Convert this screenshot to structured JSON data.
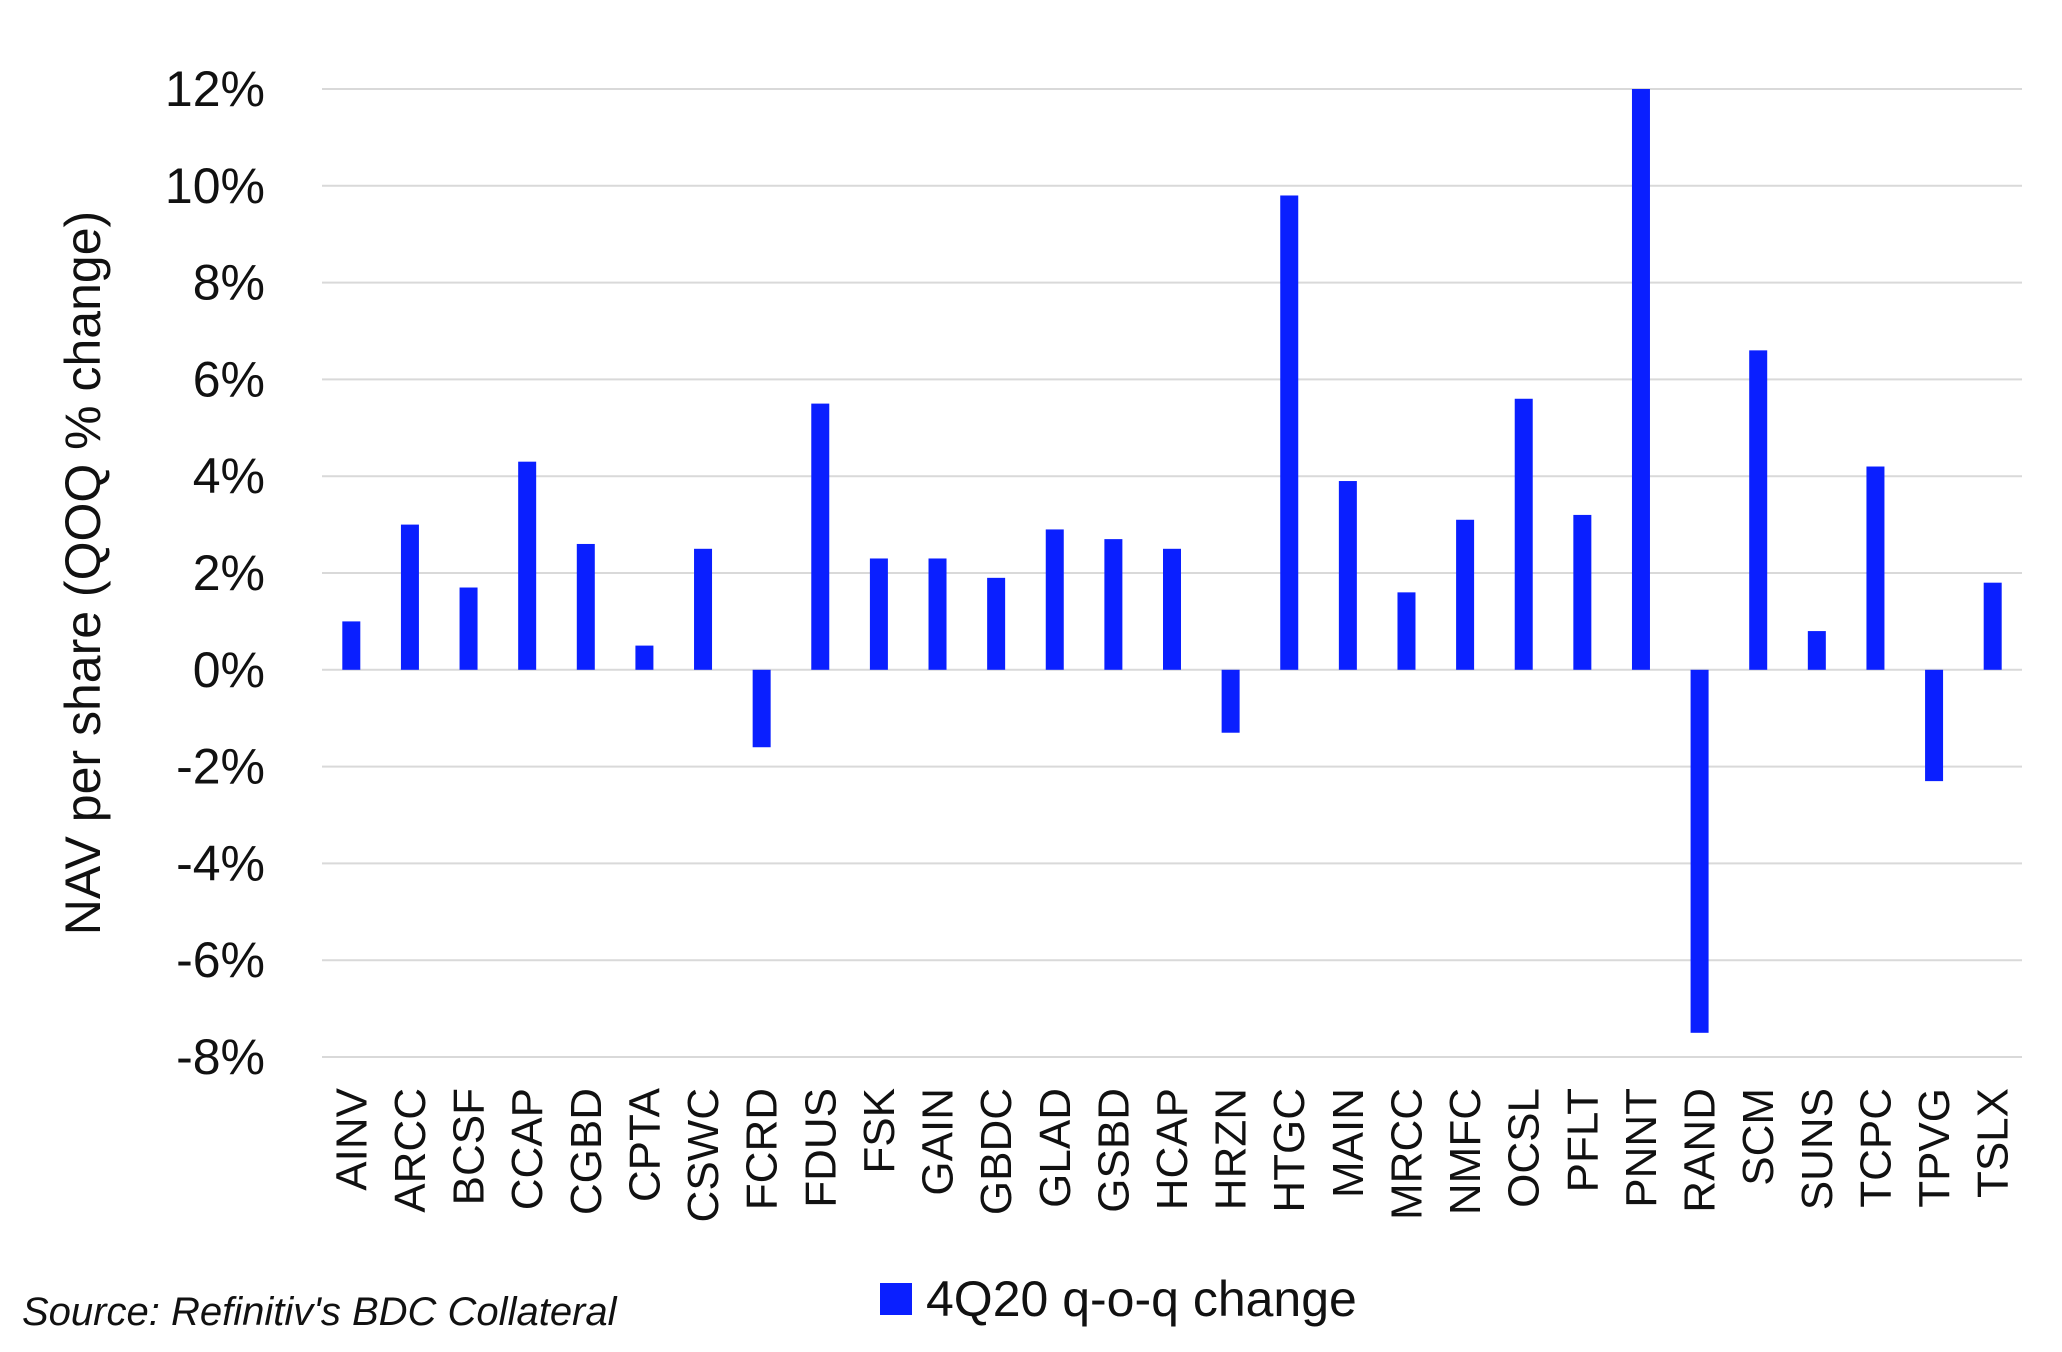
{
  "chart_data": {
    "type": "bar",
    "title": "",
    "xlabel": "",
    "ylabel": "NAV per share (QOQ % change)",
    "ylim": [
      -8,
      12
    ],
    "yticks": [
      -8,
      -6,
      -4,
      -2,
      0,
      2,
      4,
      6,
      8,
      10,
      12
    ],
    "ytick_labels": [
      "-8%",
      "-6%",
      "-4%",
      "-2%",
      "0%",
      "2%",
      "4%",
      "6%",
      "8%",
      "10%",
      "12%"
    ],
    "grid": true,
    "legend_position": "bottom",
    "categories": [
      "AINV",
      "ARCC",
      "BCSF",
      "CCAP",
      "CGBD",
      "CPTA",
      "CSWC",
      "FCRD",
      "FDUS",
      "FSK",
      "GAIN",
      "GBDC",
      "GLAD",
      "GSBD",
      "HCAP",
      "HRZN",
      "HTGC",
      "MAIN",
      "MRCC",
      "NMFC",
      "OCSL",
      "PFLT",
      "PNNT",
      "RAND",
      "SCM",
      "SUNS",
      "TCPC",
      "TPVG",
      "TSLX"
    ],
    "series": [
      {
        "name": "4Q20 q-o-q change",
        "color": "#0a1fff",
        "values": [
          1.0,
          3.0,
          1.7,
          4.3,
          2.6,
          0.5,
          2.5,
          -1.6,
          5.5,
          2.3,
          2.3,
          1.9,
          2.9,
          2.7,
          2.5,
          -1.3,
          9.8,
          3.9,
          1.6,
          3.1,
          5.6,
          3.2,
          12.0,
          -7.5,
          6.6,
          0.8,
          4.2,
          -2.3,
          1.8
        ]
      }
    ]
  },
  "source": "Source: Refinitiv's BDC Collateral"
}
